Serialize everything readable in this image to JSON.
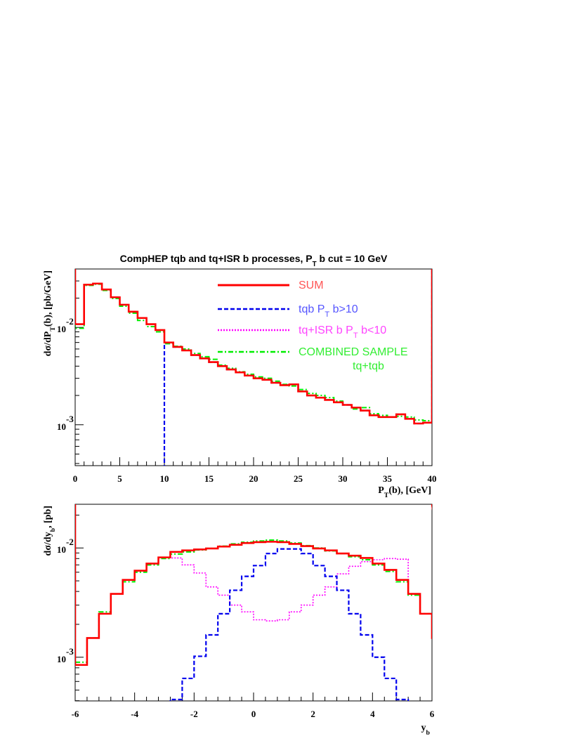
{
  "colors": {
    "sum": "#ff0000",
    "tqb": "#0000ee",
    "isr": "#ff00ff",
    "combined": "#00ee00",
    "legend_sum": "#ff5555",
    "legend_tqb": "#5555ff",
    "legend_isr": "#ff44ff",
    "legend_combined": "#33ee33"
  },
  "chart_data": [
    {
      "type": "line",
      "title": "CompHEP tqb and tq+ISR b  processes, P_T b cut = 10 GeV",
      "xlabel": "P_T(b), [GeV]",
      "ylabel": "dσ/dP_T(b), [pb/GeV]",
      "xlim": [
        0,
        40
      ],
      "ylim_log10": [
        -3.42,
        -1.4
      ],
      "y_scale": "log",
      "x_ticks": [
        "0",
        "5",
        "10",
        "15",
        "20",
        "25",
        "30",
        "35",
        "40"
      ],
      "y_ticks": [
        {
          "exp": "-2"
        },
        {
          "exp": "-3"
        }
      ],
      "legend": [
        "SUM",
        "tqb P_T b>10",
        "tq+ISR b P_T b<10",
        "COMBINED SAMPLE",
        "tq+tqb"
      ],
      "legend_position": "top-right",
      "bin_width": 1,
      "series": [
        {
          "name": "SUM",
          "key": "sum",
          "style": "solid",
          "values": [
            0.0108,
            0.0275,
            0.0282,
            0.0245,
            0.0204,
            0.0171,
            0.0145,
            0.0125,
            0.0108,
            0.0094,
            0.007,
            0.0063,
            0.0058,
            0.0052,
            0.0048,
            0.0044,
            0.004,
            0.0037,
            0.00345,
            0.0032,
            0.003,
            0.0029,
            0.0027,
            0.00255,
            0.0026,
            0.0022,
            0.002,
            0.0019,
            0.0018,
            0.0017,
            0.0016,
            0.0015,
            0.0014,
            0.00125,
            0.0012,
            0.0012,
            0.00128,
            0.00115,
            0.00103,
            0.00105
          ]
        },
        {
          "name": "tqb P_T b>10",
          "key": "tqb",
          "style": "dashed",
          "values": [
            0,
            0,
            0,
            0,
            0,
            0,
            0,
            0,
            0,
            0,
            0.007,
            0.0063,
            0.0058,
            0.0052,
            0.0048,
            0.0044,
            0.004,
            0.0037,
            0.00345,
            0.0032,
            0.003,
            0.0029,
            0.0027,
            0.00255,
            0.0026,
            0.0022,
            0.002,
            0.0019,
            0.0018,
            0.0017,
            0.0016,
            0.0015,
            0.0014,
            0.00125,
            0.0012,
            0.0012,
            0.00128,
            0.00115,
            0.00103,
            0.00105
          ]
        },
        {
          "name": "COMBINED SAMPLE",
          "key": "combined",
          "style": "dashdot",
          "values": [
            0.0098,
            0.027,
            0.0278,
            0.024,
            0.0198,
            0.0165,
            0.014,
            0.0118,
            0.0102,
            0.009,
            0.0068,
            0.0064,
            0.006,
            0.0054,
            0.005,
            0.0047,
            0.0041,
            0.0038,
            0.0035,
            0.0033,
            0.0031,
            0.003,
            0.0028,
            0.0026,
            0.0025,
            0.0023,
            0.0021,
            0.002,
            0.0019,
            0.00175,
            0.0016,
            0.00145,
            0.0015,
            0.0013,
            0.00125,
            0.0012,
            0.00122,
            0.0012,
            0.00112,
            0.0011
          ]
        }
      ]
    },
    {
      "type": "line",
      "title": "",
      "xlabel": "y_b",
      "ylabel": "dσ/dy_b, [pb]",
      "xlim": [
        -6,
        6
      ],
      "ylim_log10": [
        -3.4,
        -1.6
      ],
      "y_scale": "log",
      "x_ticks": [
        "-6",
        "-4",
        "-2",
        "0",
        "2",
        "4",
        "6"
      ],
      "y_ticks": [
        {
          "exp": "-2"
        },
        {
          "exp": "-3"
        }
      ],
      "bin_width": 0.4,
      "series": [
        {
          "name": "SUM",
          "key": "sum",
          "style": "solid",
          "values": [
            0.00085,
            0.0015,
            0.0025,
            0.0038,
            0.0051,
            0.0062,
            0.0072,
            0.0082,
            0.0092,
            0.0095,
            0.0097,
            0.0099,
            0.0103,
            0.0107,
            0.0111,
            0.0113,
            0.0114,
            0.0113,
            0.0109,
            0.0104,
            0.0099,
            0.0095,
            0.0089,
            0.0085,
            0.0081,
            0.0072,
            0.0063,
            0.0051,
            0.0038,
            0.0025,
            0.0015,
            0.0008
          ]
        },
        {
          "name": "tqb P_T b>10",
          "key": "tqb",
          "style": "dashed",
          "values": [
            0,
            0,
            0,
            0,
            0,
            0,
            0,
            0,
            0.00041,
            0.00064,
            0.00102,
            0.0016,
            0.0025,
            0.0041,
            0.0055,
            0.0069,
            0.0089,
            0.0098,
            0.0098,
            0.0089,
            0.0069,
            0.0055,
            0.0041,
            0.0025,
            0.0016,
            0.001,
            0.00064,
            0.00041,
            0,
            0,
            0,
            0
          ]
        },
        {
          "name": "tq+ISR b P_T b<10",
          "key": "isr",
          "style": "dotted",
          "values": [
            0.00085,
            0.0015,
            0.0025,
            0.0038,
            0.0051,
            0.0062,
            0.0072,
            0.0082,
            0.0081,
            0.007,
            0.0059,
            0.0044,
            0.0037,
            0.003,
            0.0026,
            0.0022,
            0.00215,
            0.0022,
            0.0026,
            0.003,
            0.0037,
            0.0044,
            0.0058,
            0.0068,
            0.0075,
            0.0078,
            0.008,
            0.0079,
            0.0038,
            0.0025,
            0.0015,
            0.0008
          ]
        },
        {
          "name": "COMBINED SAMPLE",
          "key": "combined",
          "style": "dashdot",
          "values": [
            0.0009,
            0.0015,
            0.0026,
            0.0038,
            0.0049,
            0.006,
            0.007,
            0.008,
            0.0088,
            0.0092,
            0.0096,
            0.0099,
            0.0104,
            0.0109,
            0.0113,
            0.0116,
            0.0118,
            0.0116,
            0.0111,
            0.0105,
            0.01,
            0.0094,
            0.0089,
            0.0083,
            0.0078,
            0.007,
            0.0061,
            0.0049,
            0.0037,
            0.0025,
            0.0015,
            0.00078
          ]
        }
      ]
    }
  ]
}
